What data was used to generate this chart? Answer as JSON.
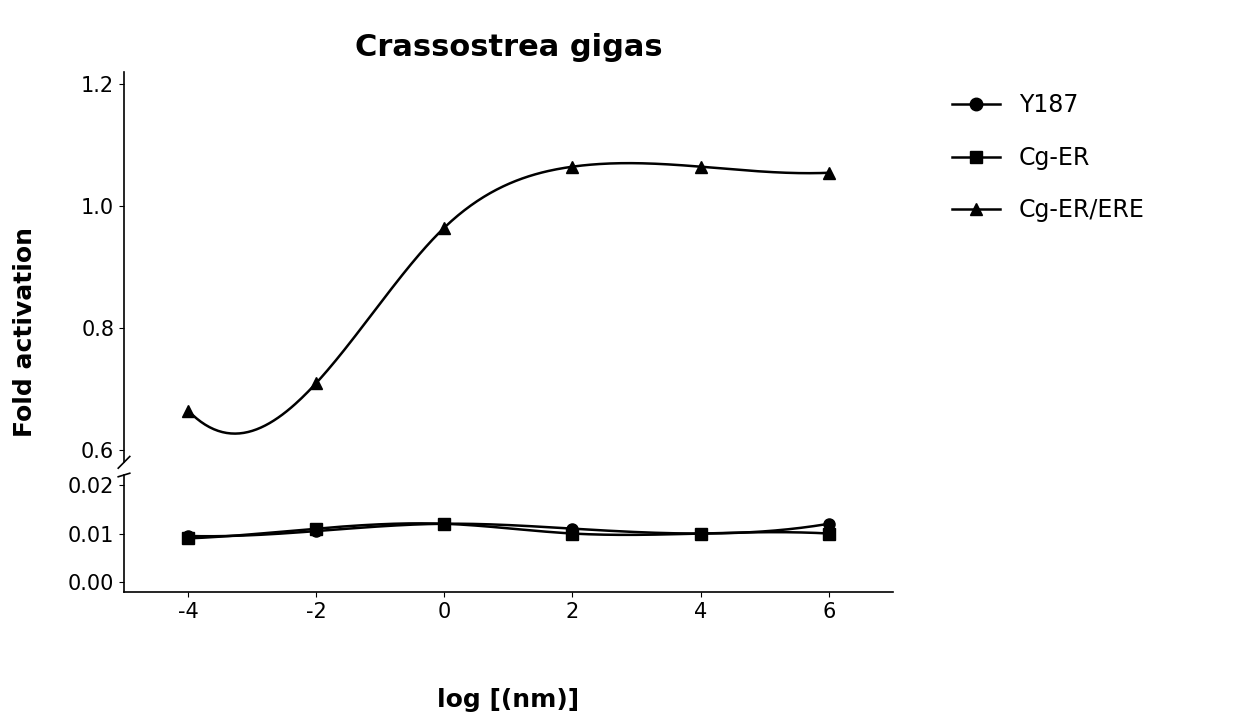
{
  "title": "Crassostrea gigas",
  "xlabel": "log [(nm)]",
  "ylabel": "Fold activation",
  "x": [
    -4,
    -2,
    0,
    2,
    4,
    6
  ],
  "y187": [
    0.0095,
    0.0105,
    0.012,
    0.011,
    0.01,
    0.012
  ],
  "cg_er": [
    0.009,
    0.011,
    0.012,
    0.01,
    0.01,
    0.01
  ],
  "cg_er_ere": [
    0.665,
    0.71,
    0.965,
    1.065,
    1.065,
    1.055
  ],
  "line_color": "#000000",
  "title_fontsize": 22,
  "label_fontsize": 18,
  "tick_fontsize": 15,
  "legend_fontsize": 17,
  "upper_ylim": [
    0.58,
    1.22
  ],
  "lower_ylim": [
    -0.002,
    0.022
  ],
  "upper_yticks": [
    0.6,
    0.8,
    1.0,
    1.2
  ],
  "lower_yticks": [
    0.0,
    0.01,
    0.02
  ],
  "xticks": [
    -4,
    -2,
    0,
    2,
    4,
    6
  ],
  "legend_labels": [
    "Y187",
    "Cg-ER",
    "Cg-ER/ERE"
  ]
}
